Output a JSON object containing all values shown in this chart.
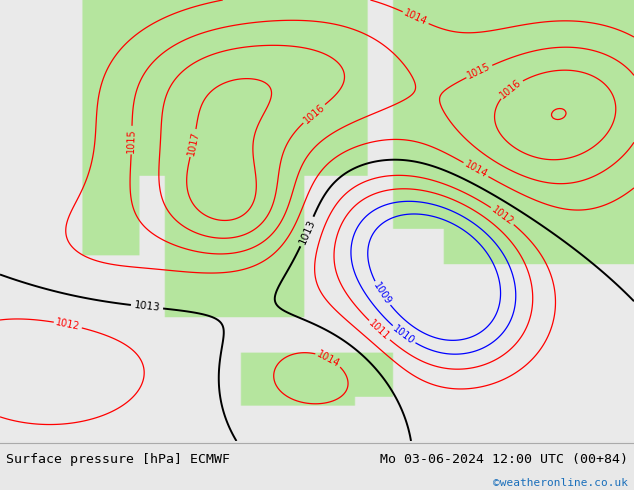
{
  "title_left": "Surface pressure [hPa] ECMWF",
  "title_right": "Mo 03-06-2024 12:00 UTC (00+84)",
  "credit": "©weatheronline.co.uk",
  "bg_color": "#e8e8e8",
  "map_bg": "#f0f0f0",
  "figure_width": 6.34,
  "figure_height": 4.9,
  "dpi": 100,
  "title_fontsize": 9.5,
  "credit_fontsize": 8,
  "label_fontsize": 7.5
}
